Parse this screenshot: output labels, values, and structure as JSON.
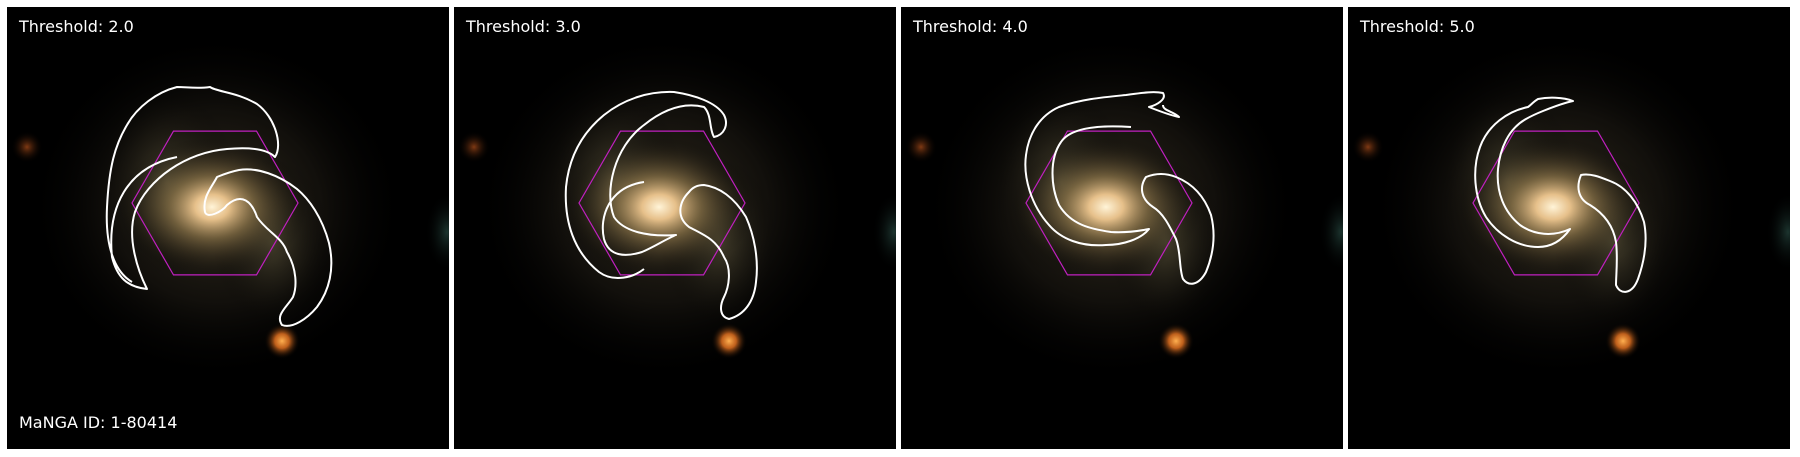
{
  "figure": {
    "galaxy_id_label": "MaNGA ID: 1-80414",
    "overlay_colors": {
      "contour": "#ffffff",
      "ifu_hexagon": "#c020c0",
      "background": "#000000"
    },
    "panels": [
      {
        "label": "Threshold: 2.0",
        "threshold": 2.0
      },
      {
        "label": "Threshold: 3.0",
        "threshold": 3.0
      },
      {
        "label": "Threshold: 4.0",
        "threshold": 4.0
      },
      {
        "label": "Threshold: 5.0",
        "threshold": 5.0
      }
    ]
  }
}
